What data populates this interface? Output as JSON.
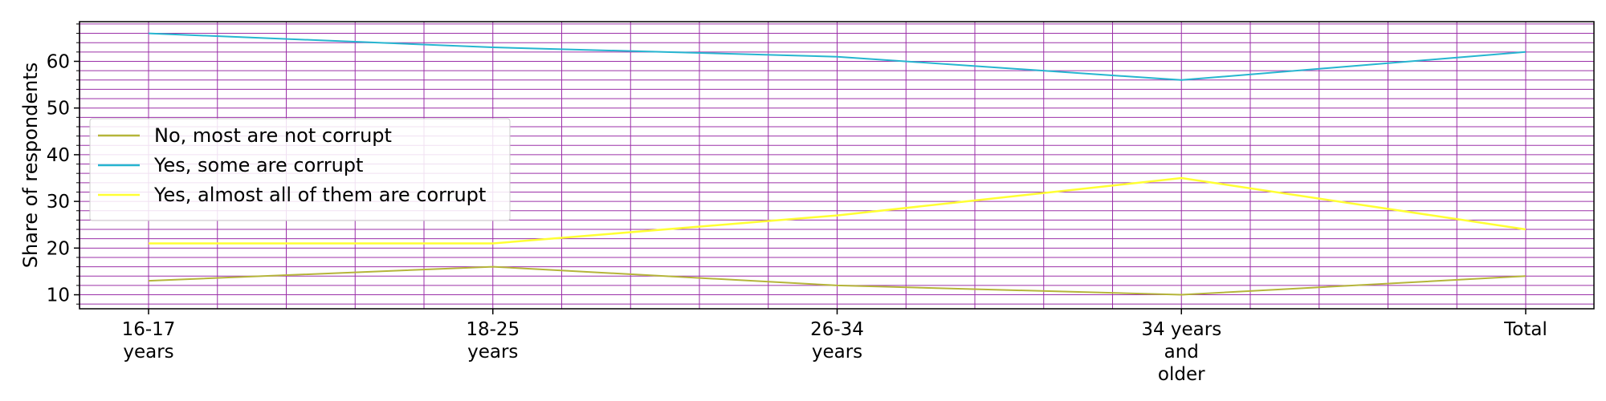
{
  "chart_data": {
    "type": "line",
    "categories": [
      [
        "16-17",
        "years"
      ],
      [
        "18-25",
        "years"
      ],
      [
        "26-34",
        "years"
      ],
      [
        "34 years",
        "and",
        "older"
      ],
      [
        "Total"
      ]
    ],
    "ylabel": "Share of respondents",
    "xlabel": "",
    "ylim": [
      7,
      68.5
    ],
    "yticks": [
      10,
      20,
      30,
      40,
      50,
      60
    ],
    "grid": true,
    "grid_color": "#9b30a8",
    "legend_position": "center-left",
    "series": [
      {
        "name": "No, most are not corrupt",
        "color": "#b5b53a",
        "values": [
          13,
          16,
          12,
          10,
          14
        ]
      },
      {
        "name": "Yes, some are corrupt",
        "color": "#26b5d0",
        "values": [
          66,
          63,
          61,
          56,
          62
        ]
      },
      {
        "name": "Yes, almost all of them are corrupt",
        "color": "#ffff33",
        "values": [
          21,
          21,
          27,
          35,
          24
        ]
      }
    ]
  }
}
